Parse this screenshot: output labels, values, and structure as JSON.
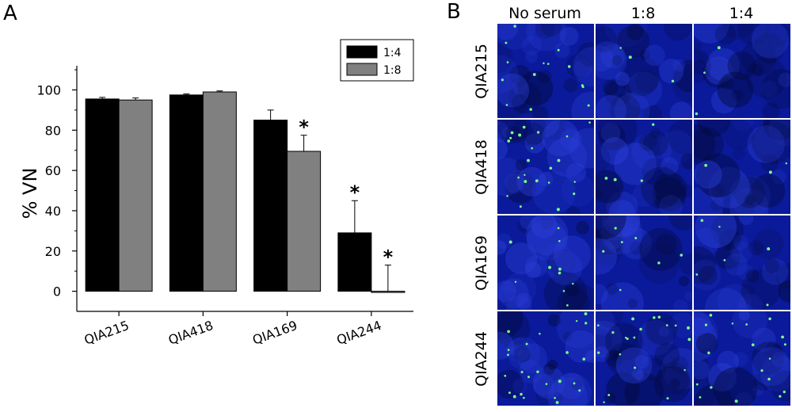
{
  "panels": {
    "a_label": "A",
    "b_label": "B"
  },
  "chart_data": {
    "type": "bar",
    "ylabel": "% VN",
    "xlabel": "",
    "ylim": [
      -10,
      112
    ],
    "yticks": [
      0,
      20,
      40,
      60,
      80,
      100
    ],
    "categories": [
      "QIA215",
      "QIA418",
      "QIA169",
      "QIA244"
    ],
    "series": [
      {
        "name": "1:4",
        "color": "#000000",
        "values": [
          95.5,
          97.5,
          85,
          29
        ],
        "errors": [
          0.8,
          0.5,
          5,
          16
        ],
        "significant": [
          false,
          false,
          false,
          true
        ]
      },
      {
        "name": "1:8",
        "color": "#808080",
        "values": [
          95,
          99,
          69.5,
          0
        ],
        "errors": [
          1,
          0.5,
          8,
          13
        ],
        "significant": [
          false,
          false,
          true,
          true
        ]
      }
    ],
    "significance_marker": "*",
    "legend_position": "top-right",
    "grid": false
  },
  "images": {
    "columns": [
      "No serum",
      "1:8",
      "1:4"
    ],
    "rows": [
      "QIA215",
      "QIA418",
      "QIA169",
      "QIA244"
    ],
    "background_color": "#0a1a9a",
    "dot_color": "#7cff8a"
  }
}
